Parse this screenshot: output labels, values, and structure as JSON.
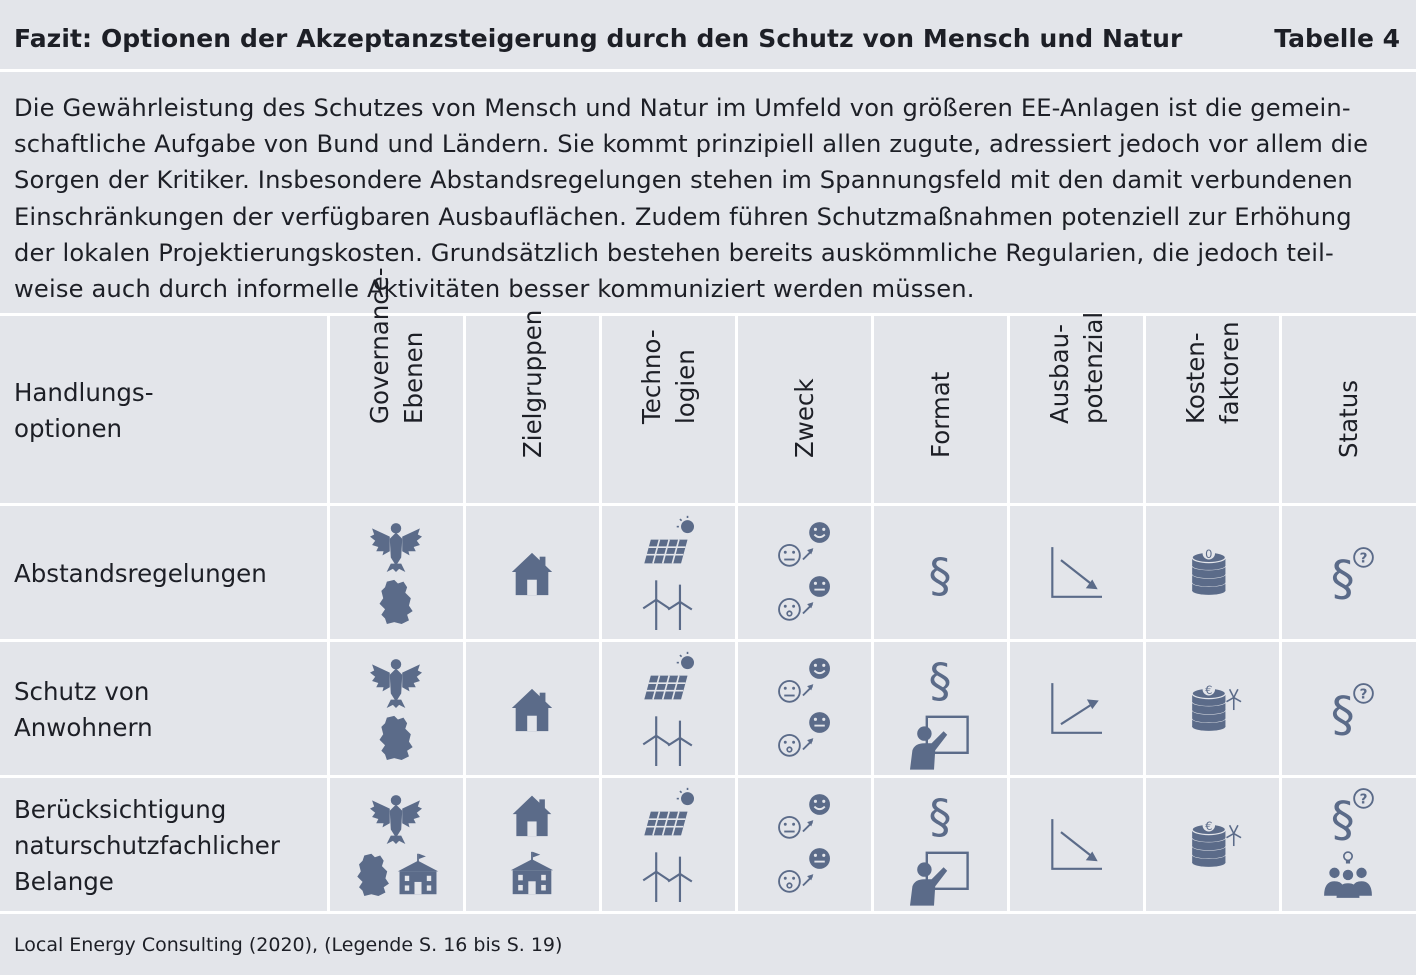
{
  "header": {
    "title": "Fazit: Optionen der Akzeptanzsteigerung durch den Schutz von Mensch und Natur",
    "table_number": "Tabelle 4"
  },
  "intro": {
    "lines": [
      "Die Gewährleistung des Schutzes von Mensch und Natur im Umfeld von größeren EE-Anlagen ist die gemein-",
      "schaftliche Aufgabe von Bund und Ländern. Sie kommt prinzipiell allen zugute, adressiert jedoch vor allem die",
      "Sorgen der Kritiker. Insbesondere Abstandsregelungen stehen im Spannungsfeld mit den damit verbundenen",
      "Einschränkungen der verfügbaren Ausbauflächen. Zudem führen Schutzmaßnahmen potenziell zur Erhöhung",
      "der lokalen Projektierungskosten. Grundsätzlich bestehen bereits auskömmliche Regularien, die jedoch teil-",
      "weise auch durch informelle Aktivitäten besser kommuniziert werden müssen."
    ]
  },
  "table": {
    "row_header_label": [
      "Handlungs-",
      "optionen"
    ],
    "columns": [
      {
        "lines": [
          "Governance-",
          "Ebenen"
        ]
      },
      {
        "lines": [
          "Zielgruppen"
        ]
      },
      {
        "lines": [
          "Techno-",
          "logien"
        ]
      },
      {
        "lines": [
          "Zweck"
        ]
      },
      {
        "lines": [
          "Format"
        ]
      },
      {
        "lines": [
          "Ausbau-",
          "potenzial"
        ]
      },
      {
        "lines": [
          "Kosten-",
          "faktoren"
        ]
      },
      {
        "lines": [
          "Status"
        ]
      }
    ],
    "rows": [
      {
        "label": [
          "Abstandsregelungen"
        ],
        "governance": [
          "eagle-icon",
          "germany-map-icon"
        ],
        "zielgruppen": [
          "house-icon"
        ],
        "technologien": [
          "solar-panel-icon",
          "wind-turbines-icon"
        ],
        "zweck": [
          "mood-neutral-to-happy-icon",
          "mood-worried-to-neutral-icon"
        ],
        "format": [
          "paragraph-icon"
        ],
        "ausbaupotenzial": "trend-down-icon",
        "kostenfaktoren": {
          "icon": "coin-stack-icon",
          "symbol": "0"
        },
        "status": [
          "paragraph-question-icon"
        ]
      },
      {
        "label": [
          "Schutz von",
          "Anwohnern"
        ],
        "governance": [
          "eagle-icon",
          "germany-map-icon"
        ],
        "zielgruppen": [
          "house-icon"
        ],
        "technologien": [
          "solar-panel-icon",
          "wind-turbines-icon"
        ],
        "zweck": [
          "mood-neutral-to-happy-icon",
          "mood-worried-to-neutral-icon"
        ],
        "format": [
          "paragraph-icon",
          "presentation-icon"
        ],
        "ausbaupotenzial": "trend-up-icon",
        "kostenfaktoren": {
          "icon": "coin-stack-wind-icon",
          "symbol": "€"
        },
        "status": [
          "paragraph-question-icon"
        ]
      },
      {
        "label": [
          "Berücksichtigung",
          "naturschutzfachlicher",
          "Belange"
        ],
        "governance": [
          "eagle-icon",
          "germany-map-icon",
          "town-hall-icon"
        ],
        "zielgruppen": [
          "house-icon",
          "town-hall-icon"
        ],
        "technologien": [
          "solar-panel-icon",
          "wind-turbines-icon"
        ],
        "zweck": [
          "mood-neutral-to-happy-icon",
          "mood-worried-to-neutral-icon"
        ],
        "format": [
          "paragraph-icon",
          "presentation-icon"
        ],
        "ausbaupotenzial": "trend-down-icon",
        "kostenfaktoren": {
          "icon": "coin-stack-wind-icon",
          "symbol": "€"
        },
        "status": [
          "paragraph-question-icon",
          "group-idea-icon"
        ]
      }
    ]
  },
  "footer": {
    "source": "Local Energy Consulting (2020), (Legende S. 16 bis S. 19)"
  },
  "colors": {
    "background": "#e3e5ea",
    "icon": "#5b6b89",
    "lines": "#ffffff",
    "text": "#1d1f26"
  }
}
